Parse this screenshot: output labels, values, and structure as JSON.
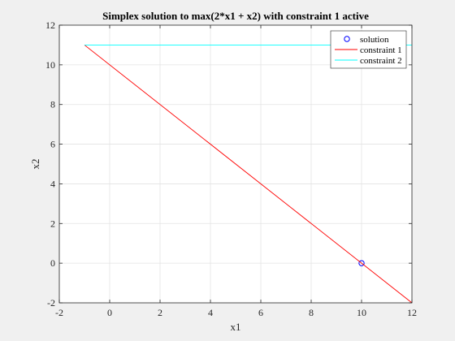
{
  "chart_data": {
    "type": "line",
    "title": "Simplex solution to max(2*x1 + x2) with constraint 1 active",
    "xlabel": "x1",
    "ylabel": "x2",
    "xlim": [
      -2,
      12
    ],
    "ylim": [
      -2,
      12
    ],
    "xticks": [
      -2,
      0,
      2,
      4,
      6,
      8,
      10,
      12
    ],
    "yticks": [
      -2,
      0,
      2,
      4,
      6,
      8,
      10,
      12
    ],
    "xtick_labels": [
      "-2",
      "0",
      "2",
      "4",
      "6",
      "8",
      "10",
      "12"
    ],
    "ytick_labels": [
      "-2",
      "0",
      "2",
      "4",
      "6",
      "8",
      "10",
      "12"
    ],
    "grid": true,
    "legend_position": "top-right",
    "series": [
      {
        "name": "solution",
        "kind": "marker",
        "color": "#0000ff",
        "x": [
          10
        ],
        "y": [
          0
        ]
      },
      {
        "name": "constraint 1",
        "kind": "line",
        "color": "#ff0000",
        "x": [
          -1,
          12
        ],
        "y": [
          11,
          -2
        ]
      },
      {
        "name": "constraint 2",
        "kind": "line",
        "color": "#00ffff",
        "x": [
          -1,
          12
        ],
        "y": [
          11,
          11
        ]
      }
    ]
  }
}
